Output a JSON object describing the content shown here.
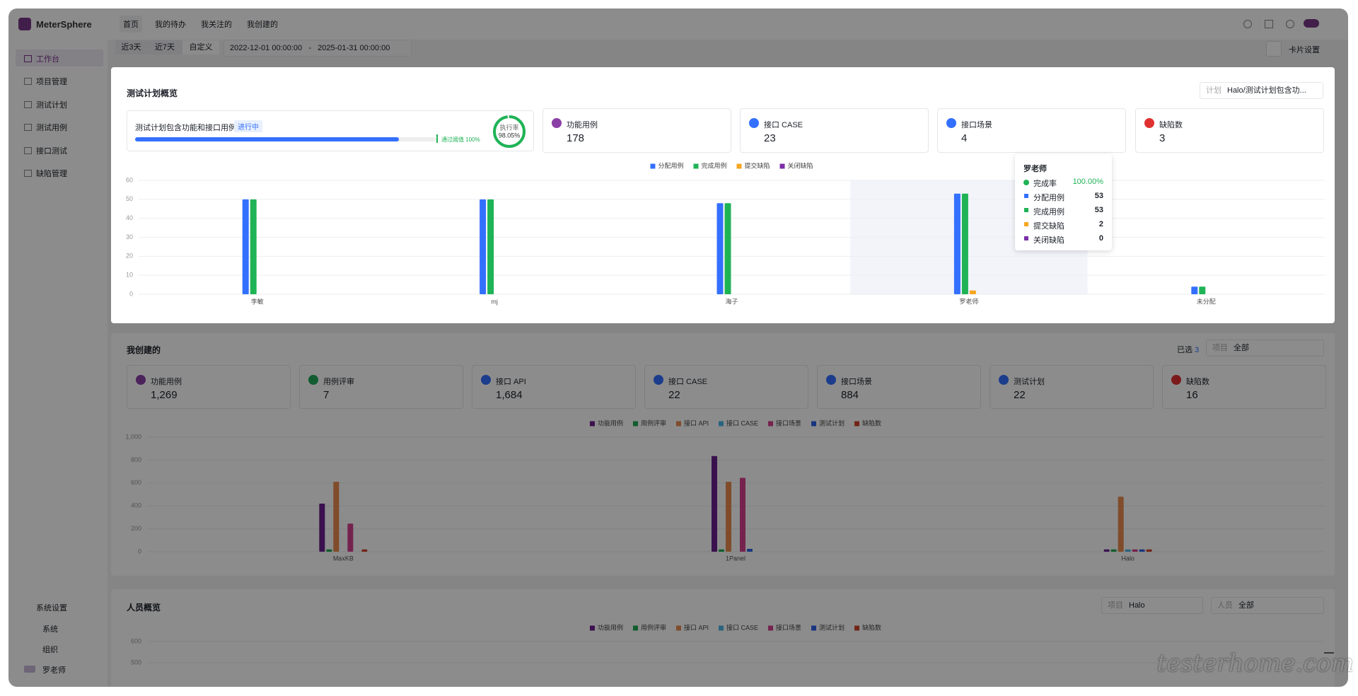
{
  "app": {
    "logo": "MeterSphere",
    "nav": [
      "首页",
      "我的待办",
      "我关注的",
      "我创建的"
    ],
    "menu": [
      "工作台",
      "项目管理",
      "测试计划",
      "测试用例",
      "接口测试",
      "缺陷管理"
    ],
    "settings": {
      "title": "系统设置",
      "items": [
        "系统",
        "组织"
      ]
    },
    "user": "罗老师"
  },
  "filter": {
    "ranges": [
      "近3天",
      "近7天",
      "自定义"
    ],
    "start": "2022-12-01 00:00:00",
    "sep": "-",
    "end": "2025-01-31 00:00:00",
    "card_settings": "卡片设置"
  },
  "plan_overview": {
    "title": "测试计划概览",
    "select_label": "计划",
    "select_value": "Halo/测试计划包含功...",
    "plan_name": "测试计划包含功能和接口用例",
    "status": "进行中",
    "threshold": "通过阈值 100%",
    "rate_label": "执行率",
    "execution_rate": {
      "value": 98.05,
      "label": "98.05%"
    },
    "cards": [
      {
        "label": "功能用例",
        "value": "178"
      },
      {
        "label": "接口 CASE",
        "value": "23"
      },
      {
        "label": "接口场景",
        "value": "4"
      },
      {
        "label": "缺陷数",
        "value": "3"
      }
    ]
  },
  "my_created": {
    "title": "我创建的",
    "selected_label": "已选",
    "selected_count": "3",
    "project_label": "项目",
    "project_value": "全部",
    "cards": [
      {
        "label": "功能用例",
        "value": "1,269"
      },
      {
        "label": "用例评审",
        "value": "7"
      },
      {
        "label": "接口 API",
        "value": "1,684"
      },
      {
        "label": "接口 CASE",
        "value": "22"
      },
      {
        "label": "接口场景",
        "value": "884"
      },
      {
        "label": "测试计划",
        "value": "22"
      },
      {
        "label": "缺陷数",
        "value": "16"
      }
    ]
  },
  "people_overview": {
    "title": "人员概览",
    "project_label": "项目",
    "project_value": "Halo",
    "member_label": "人员",
    "member_value": "全部"
  },
  "watermark": "testerhome.com",
  "chart_data": [
    {
      "type": "bar",
      "categories": [
        "李敏",
        "mj",
        "海子",
        "罗老师",
        "未分配"
      ],
      "series": [
        {
          "name": "分配用例",
          "color": "#3370ff",
          "values": [
            50,
            50,
            48,
            53,
            4
          ]
        },
        {
          "name": "完成用例",
          "color": "#1fb356",
          "values": [
            50,
            50,
            48,
            53,
            4
          ]
        },
        {
          "name": "提交缺陷",
          "color": "#f5a623",
          "values": [
            0,
            0,
            0,
            2,
            0
          ]
        },
        {
          "name": "关闭缺陷",
          "color": "#7b2fa8",
          "values": [
            0,
            0,
            0,
            0,
            0
          ]
        }
      ],
      "ylim": [
        0,
        60
      ],
      "yticks": [
        0,
        10,
        20,
        30,
        40,
        50,
        60
      ],
      "grid": true,
      "legend": "top",
      "tooltip": {
        "rate_label": "完成率",
        "rate": "100.00%"
      }
    },
    {
      "type": "bar",
      "categories": [
        "MaxKB",
        "1Panel",
        "Halo"
      ],
      "series": [
        {
          "name": "功能用例",
          "color": "#6b1f8f",
          "values": [
            420,
            835,
            20
          ]
        },
        {
          "name": "用例评审",
          "color": "#1eaa52",
          "values": [
            20,
            20,
            20
          ]
        },
        {
          "name": "接口 API",
          "color": "#e98a4f",
          "values": [
            610,
            610,
            480
          ]
        },
        {
          "name": "接口 CASE",
          "color": "#4bb4e6",
          "values": [
            0,
            0,
            20
          ]
        },
        {
          "name": "接口场景",
          "color": "#d6418f",
          "values": [
            245,
            645,
            20
          ]
        },
        {
          "name": "测试计划",
          "color": "#2f62e8",
          "values": [
            0,
            25,
            20
          ]
        },
        {
          "name": "缺陷数",
          "color": "#d0432a",
          "values": [
            20,
            0,
            20
          ]
        }
      ],
      "ylim": [
        0,
        1000
      ],
      "yticks": [
        0,
        200,
        400,
        600,
        800,
        {
          "value": 1000,
          "label": "1,000"
        }
      ],
      "grid": true,
      "legend": "top"
    },
    {
      "type": "bar",
      "series": [
        {
          "name": "功能用例",
          "color": "#6b1f8f"
        },
        {
          "name": "用例评审",
          "color": "#1eaa52"
        },
        {
          "name": "接口 API",
          "color": "#e98a4f"
        },
        {
          "name": "接口 CASE",
          "color": "#4bb4e6"
        },
        {
          "name": "接口场景",
          "color": "#d6418f"
        },
        {
          "name": "测试计划",
          "color": "#2f62e8"
        },
        {
          "name": "缺陷数",
          "color": "#d0432a"
        }
      ],
      "ylim": [
        0,
        600
      ],
      "yticks": [
        500,
        600
      ],
      "grid": true,
      "legend": "top"
    }
  ]
}
